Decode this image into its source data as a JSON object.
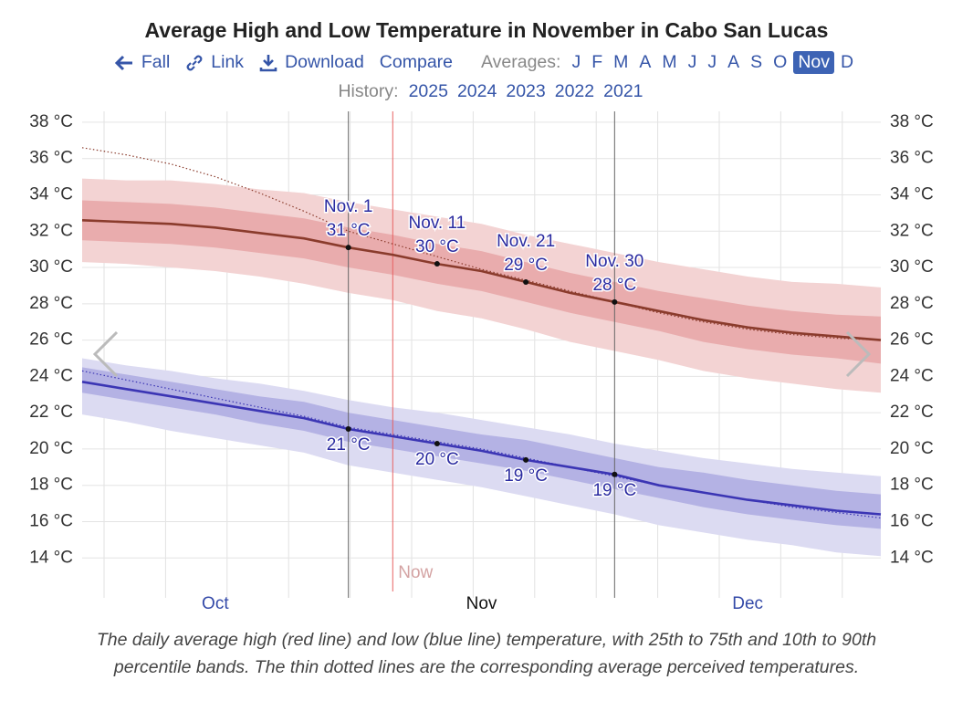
{
  "title": "Average High and Low Temperature in November in Cabo San Lucas",
  "nav": {
    "links": [
      "Fall",
      "Link",
      "Download",
      "Compare"
    ],
    "averages_label": "Averages:",
    "months": [
      {
        "label": "J"
      },
      {
        "label": "F"
      },
      {
        "label": "M"
      },
      {
        "label": "A"
      },
      {
        "label": "M"
      },
      {
        "label": "J"
      },
      {
        "label": "J"
      },
      {
        "label": "A"
      },
      {
        "label": "S"
      },
      {
        "label": "O"
      },
      {
        "label": "Nov",
        "selected": true
      },
      {
        "label": "D"
      }
    ],
    "history_label": "History:",
    "years": [
      "2025",
      "2024",
      "2023",
      "2022",
      "2021"
    ]
  },
  "chart_data": {
    "type": "line",
    "categories": [
      null,
      null,
      null,
      "Oct",
      null,
      null,
      null,
      null,
      null,
      "Nov",
      null,
      null,
      null,
      null,
      null,
      "Dec",
      null,
      null,
      null
    ],
    "x_notes": [
      null,
      null,
      null,
      null,
      null,
      null,
      null,
      "Now",
      null,
      null,
      null,
      null,
      null,
      null,
      null,
      null,
      null,
      null,
      null
    ],
    "ylim": [
      11.8,
      38.6
    ],
    "yticks": [
      {
        "value": 14,
        "label": "14 °C"
      },
      {
        "value": 16,
        "label": "16 °C"
      },
      {
        "value": 18,
        "label": "18 °C"
      },
      {
        "value": 20,
        "label": "20 °C"
      },
      {
        "value": 22,
        "label": "22 °C"
      },
      {
        "value": 24,
        "label": "24 °C"
      },
      {
        "value": 26,
        "label": "26 °C"
      },
      {
        "value": 28,
        "label": "28 °C"
      },
      {
        "value": 30,
        "label": "30 °C"
      },
      {
        "value": 32,
        "label": "32 °C"
      },
      {
        "value": 34,
        "label": "34 °C"
      },
      {
        "value": 36,
        "label": "36 °C"
      },
      {
        "value": 38,
        "label": "38 °C"
      }
    ],
    "y2lim": [
      11.8,
      38.6
    ],
    "y2ticks": [
      {
        "value": 14,
        "label": "14 °C"
      },
      {
        "value": 16,
        "label": "16 °C"
      },
      {
        "value": 18,
        "label": "18 °C"
      },
      {
        "value": 20,
        "label": "20 °C"
      },
      {
        "value": 22,
        "label": "22 °C"
      },
      {
        "value": 24,
        "label": "24 °C"
      },
      {
        "value": 26,
        "label": "26 °C"
      },
      {
        "value": 28,
        "label": "28 °C"
      },
      {
        "value": 30,
        "label": "30 °C"
      },
      {
        "value": 32,
        "label": "32 °C"
      },
      {
        "value": 34,
        "label": "34 °C"
      },
      {
        "value": 36,
        "label": "36 °C"
      },
      {
        "value": 38,
        "label": "38 °C"
      }
    ],
    "grid": true,
    "series": [
      {
        "color": "#8a3b2c",
        "band_colors": [
          "#f3d3d3",
          "#e9acad"
        ],
        "label_color": "#2a2aa0",
        "values": [
          32.6,
          32.5,
          32.4,
          32.2,
          31.9,
          31.6,
          31.1,
          30.7,
          30.2,
          29.8,
          29.2,
          28.6,
          28.1,
          27.6,
          27.1,
          26.7,
          26.4,
          26.2,
          26.0
        ],
        "perceived": [
          36.6,
          36.2,
          35.7,
          35.0,
          34.1,
          33.1,
          32.0,
          31.3,
          30.6,
          29.9,
          29.3,
          28.7,
          28.1,
          27.5,
          27.0,
          26.6,
          26.3,
          26.1,
          26.0
        ],
        "p90": [
          34.9,
          34.8,
          34.8,
          34.6,
          34.3,
          34.1,
          33.6,
          33.2,
          32.8,
          32.4,
          31.8,
          31.3,
          30.8,
          30.3,
          29.9,
          29.5,
          29.2,
          29.1,
          28.9
        ],
        "p75": [
          33.7,
          33.6,
          33.5,
          33.3,
          33.0,
          32.7,
          32.2,
          31.8,
          31.3,
          30.9,
          30.3,
          29.7,
          29.2,
          28.7,
          28.3,
          27.9,
          27.6,
          27.4,
          27.3
        ],
        "p25": [
          31.5,
          31.4,
          31.3,
          31.1,
          30.8,
          30.5,
          30.0,
          29.6,
          29.1,
          28.7,
          28.1,
          27.5,
          27.0,
          26.5,
          25.9,
          25.5,
          25.2,
          25.0,
          24.7
        ],
        "p10": [
          30.3,
          30.2,
          30.0,
          29.8,
          29.5,
          29.1,
          28.6,
          28.2,
          27.6,
          27.2,
          26.6,
          25.9,
          25.4,
          24.9,
          24.3,
          23.9,
          23.6,
          23.3,
          23.1
        ],
        "date_labels": [
          null,
          null,
          null,
          null,
          null,
          null,
          "Nov. 1",
          null,
          "Nov. 11",
          null,
          "Nov. 21",
          null,
          "Nov. 30",
          null,
          null,
          null,
          null,
          null,
          null
        ],
        "value_labels": [
          null,
          null,
          null,
          null,
          null,
          null,
          "31 °C",
          null,
          "30 °C",
          null,
          "29 °C",
          null,
          "28 °C",
          null,
          null,
          null,
          null,
          null,
          null
        ]
      },
      {
        "color": "#3b35b4",
        "band_colors": [
          "#dcdbf2",
          "#b4b2e4"
        ],
        "label_color": "#2a2aa0",
        "values": [
          23.7,
          23.3,
          22.9,
          22.5,
          22.1,
          21.7,
          21.1,
          20.7,
          20.3,
          19.9,
          19.4,
          19.0,
          18.6,
          18.0,
          17.6,
          17.2,
          16.9,
          16.6,
          16.4
        ],
        "perceived": [
          24.3,
          23.8,
          23.3,
          22.8,
          22.3,
          21.8,
          21.2,
          20.8,
          20.4,
          20.0,
          19.5,
          19.0,
          18.5,
          18.0,
          17.6,
          17.2,
          16.8,
          16.5,
          16.2
        ],
        "p90": [
          25.0,
          24.6,
          24.3,
          23.9,
          23.6,
          23.2,
          22.7,
          22.3,
          22.0,
          21.6,
          21.2,
          20.8,
          20.3,
          19.9,
          19.5,
          19.2,
          18.9,
          18.7,
          18.5
        ],
        "p75": [
          24.5,
          24.1,
          23.7,
          23.3,
          22.9,
          22.6,
          22.0,
          21.6,
          21.2,
          20.8,
          20.5,
          20.0,
          19.5,
          19.0,
          18.7,
          18.3,
          18.0,
          17.7,
          17.5
        ],
        "p25": [
          23.1,
          22.7,
          22.3,
          21.9,
          21.4,
          21.0,
          20.4,
          20.0,
          19.6,
          19.2,
          18.8,
          18.3,
          17.8,
          17.3,
          16.8,
          16.4,
          16.1,
          15.8,
          15.6
        ],
        "p10": [
          21.9,
          21.5,
          21.0,
          20.6,
          20.2,
          19.8,
          19.1,
          18.7,
          18.3,
          17.9,
          17.4,
          16.9,
          16.4,
          15.8,
          15.4,
          15.0,
          14.7,
          14.3,
          14.1
        ],
        "value_labels": [
          null,
          null,
          null,
          null,
          null,
          null,
          "21 °C",
          null,
          "20 °C",
          null,
          "19 °C",
          null,
          "19 °C",
          null,
          null,
          null,
          null,
          null,
          null
        ]
      }
    ]
  },
  "caption": "The daily average high (red line) and low (blue line) temperature, with 25th to 75th and 10th to 90th percentile bands. The thin dotted lines are the corresponding average perceived temperatures."
}
